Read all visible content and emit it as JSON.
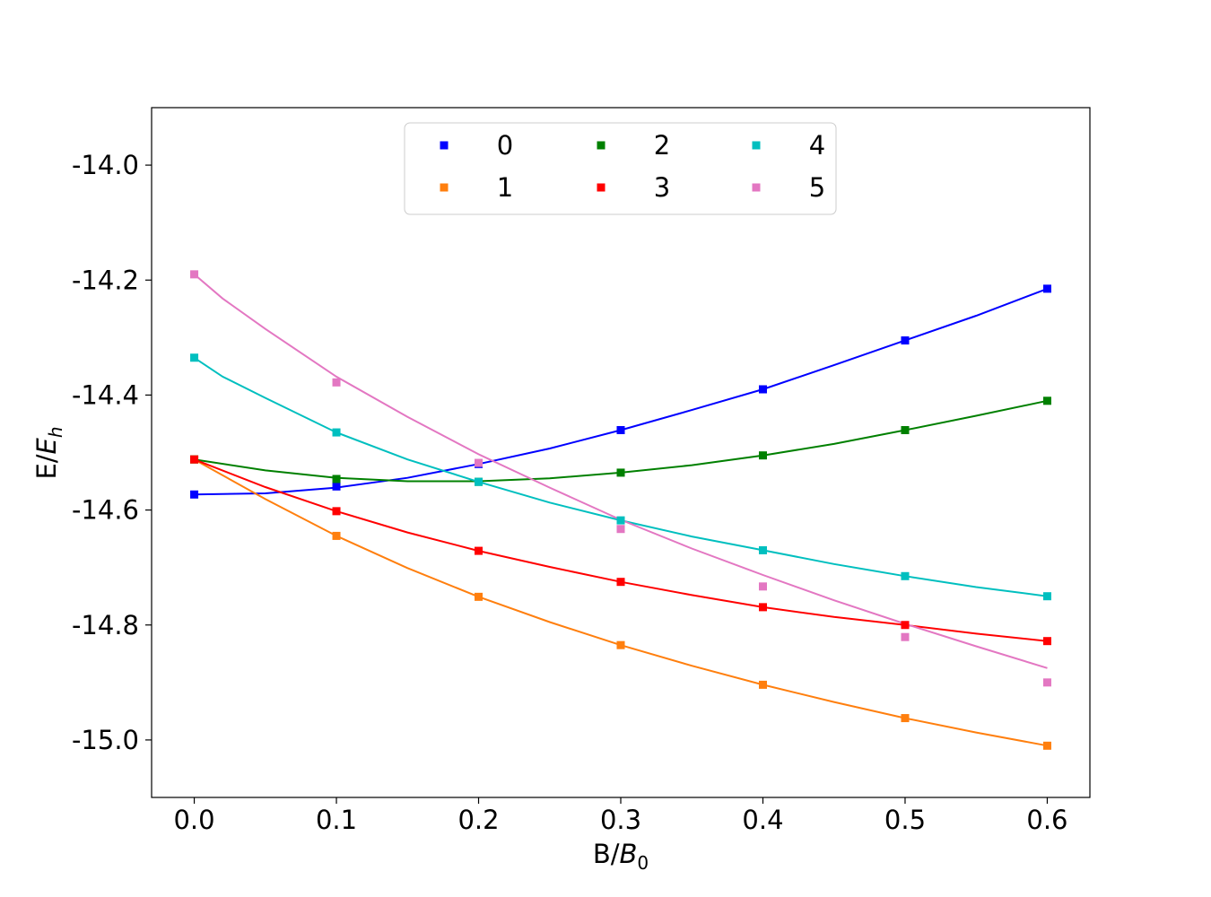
{
  "chart_data": {
    "type": "scatter",
    "xlabel": "B/B0",
    "ylabel": "E/Eh",
    "xlim": [
      -0.03,
      0.63
    ],
    "ylim": [
      -15.1,
      -13.9
    ],
    "x_ticks": [
      "0.0",
      "0.1",
      "0.2",
      "0.3",
      "0.4",
      "0.5",
      "0.6"
    ],
    "y_ticks": [
      "-14.0",
      "-14.2",
      "-14.4",
      "-14.6",
      "-14.8",
      "-15.0"
    ],
    "grid": false,
    "legend_placement": "upper center",
    "legend_columns": 3,
    "x": [
      0.0,
      0.1,
      0.2,
      0.3,
      0.4,
      0.5,
      0.6
    ],
    "series": [
      {
        "name": "0",
        "color": "#0000ff",
        "markers": [
          -14.573,
          -14.559,
          -14.52,
          -14.461,
          -14.39,
          -14.305,
          -14.215
        ],
        "fit_x": [
          0.0,
          0.05,
          0.1,
          0.15,
          0.2,
          0.25,
          0.3,
          0.35,
          0.4,
          0.45,
          0.5,
          0.55,
          0.6
        ],
        "fit_y": [
          -14.573,
          -14.571,
          -14.561,
          -14.544,
          -14.52,
          -14.493,
          -14.461,
          -14.426,
          -14.39,
          -14.348,
          -14.305,
          -14.262,
          -14.215
        ]
      },
      {
        "name": "1",
        "color": "#ff7f0e",
        "markers": [
          -14.512,
          -14.645,
          -14.751,
          -14.835,
          -14.904,
          -14.962,
          -15.01
        ],
        "fit_x": [
          0.0,
          0.05,
          0.1,
          0.15,
          0.2,
          0.25,
          0.3,
          0.35,
          0.4,
          0.45,
          0.5,
          0.55,
          0.6
        ],
        "fit_y": [
          -14.512,
          -14.581,
          -14.645,
          -14.701,
          -14.751,
          -14.795,
          -14.835,
          -14.871,
          -14.904,
          -14.934,
          -14.962,
          -14.987,
          -15.01
        ]
      },
      {
        "name": "2",
        "color": "#008000",
        "markers": [
          -14.512,
          -14.546,
          -14.551,
          -14.535,
          -14.505,
          -14.461,
          -14.41
        ],
        "fit_x": [
          0.0,
          0.05,
          0.1,
          0.15,
          0.2,
          0.25,
          0.3,
          0.35,
          0.4,
          0.45,
          0.5,
          0.55,
          0.6
        ],
        "fit_y": [
          -14.512,
          -14.531,
          -14.544,
          -14.55,
          -14.55,
          -14.545,
          -14.535,
          -14.522,
          -14.505,
          -14.485,
          -14.461,
          -14.436,
          -14.41
        ]
      },
      {
        "name": "3",
        "color": "#ff0000",
        "markers": [
          -14.512,
          -14.602,
          -14.671,
          -14.725,
          -14.769,
          -14.8,
          -14.828
        ],
        "fit_x": [
          0.0,
          0.05,
          0.1,
          0.15,
          0.2,
          0.25,
          0.3,
          0.35,
          0.4,
          0.45,
          0.5,
          0.55,
          0.6
        ],
        "fit_y": [
          -14.512,
          -14.56,
          -14.602,
          -14.639,
          -14.671,
          -14.699,
          -14.725,
          -14.748,
          -14.769,
          -14.786,
          -14.8,
          -14.815,
          -14.828
        ]
      },
      {
        "name": "4",
        "color": "#00bfbf",
        "markers": [
          -14.335,
          -14.465,
          -14.551,
          -14.618,
          -14.67,
          -14.715,
          -14.75
        ],
        "fit_x": [
          0.0,
          0.02,
          0.05,
          0.1,
          0.15,
          0.2,
          0.25,
          0.3,
          0.35,
          0.4,
          0.45,
          0.5,
          0.55,
          0.6
        ],
        "fit_y": [
          -14.335,
          -14.368,
          -14.405,
          -14.465,
          -14.512,
          -14.551,
          -14.587,
          -14.618,
          -14.646,
          -14.67,
          -14.694,
          -14.715,
          -14.734,
          -14.75
        ]
      },
      {
        "name": "5",
        "color": "#e377c2",
        "markers": [
          -14.19,
          -14.378,
          -14.518,
          -14.633,
          -14.733,
          -14.821,
          -14.9
        ],
        "fit_x": [
          0.0,
          0.02,
          0.05,
          0.1,
          0.15,
          0.2,
          0.25,
          0.3,
          0.35,
          0.4,
          0.45,
          0.5,
          0.55,
          0.6
        ],
        "fit_y": [
          -14.19,
          -14.232,
          -14.285,
          -14.368,
          -14.438,
          -14.503,
          -14.561,
          -14.617,
          -14.667,
          -14.713,
          -14.757,
          -14.798,
          -14.837,
          -14.875
        ]
      }
    ]
  }
}
